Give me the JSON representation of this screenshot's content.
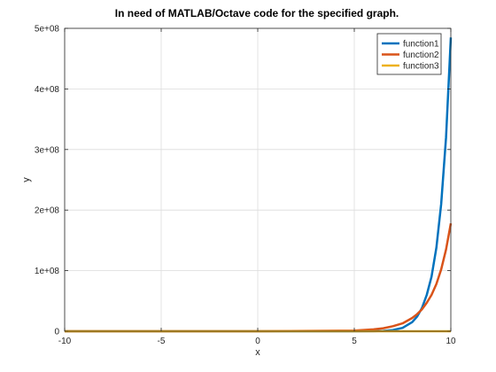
{
  "chart_data": {
    "type": "line",
    "title": "In need of MATLAB/Octave code for the specified graph.",
    "xlabel": "x",
    "ylabel": "y",
    "xlim": [
      -10,
      10
    ],
    "ylim": [
      0,
      500000000
    ],
    "xticks": [
      -10,
      -5,
      0,
      5,
      10
    ],
    "xtick_labels": [
      "-10",
      "-5",
      "0",
      "5",
      "10"
    ],
    "yticks": [
      0,
      100000000,
      200000000,
      300000000,
      400000000,
      500000000
    ],
    "ytick_labels": [
      "0",
      "1e+08",
      "2e+08",
      "3e+08",
      "4e+08",
      "5e+08"
    ],
    "grid": true,
    "legend_position": "top-right",
    "x": [
      -10,
      -5,
      0,
      5,
      6,
      6.5,
      7,
      7.5,
      8,
      8.25,
      8.5,
      8.75,
      9,
      9.25,
      9.5,
      9.75,
      10
    ],
    "series": [
      {
        "name": "function1",
        "color": "#0072BD",
        "values": [
          0,
          0,
          0,
          7000,
          150000,
          600000,
          2000000,
          5600000,
          15000000,
          24000000,
          38000000,
          60000000,
          90000000,
          138000000,
          210000000,
          320000000,
          485000000
        ]
      },
      {
        "name": "function2",
        "color": "#D95319",
        "values": [
          0,
          0,
          0,
          1000000,
          3000000,
          5000000,
          8300000,
          13000000,
          22000000,
          28000000,
          36000000,
          47000000,
          60000000,
          78000000,
          102000000,
          135000000,
          178000000
        ]
      },
      {
        "name": "function3",
        "color": "#EDB120",
        "values": [
          0,
          0,
          0,
          0,
          0,
          0,
          0,
          0,
          0,
          0,
          0,
          0,
          0,
          0,
          0,
          0,
          0
        ]
      }
    ]
  }
}
